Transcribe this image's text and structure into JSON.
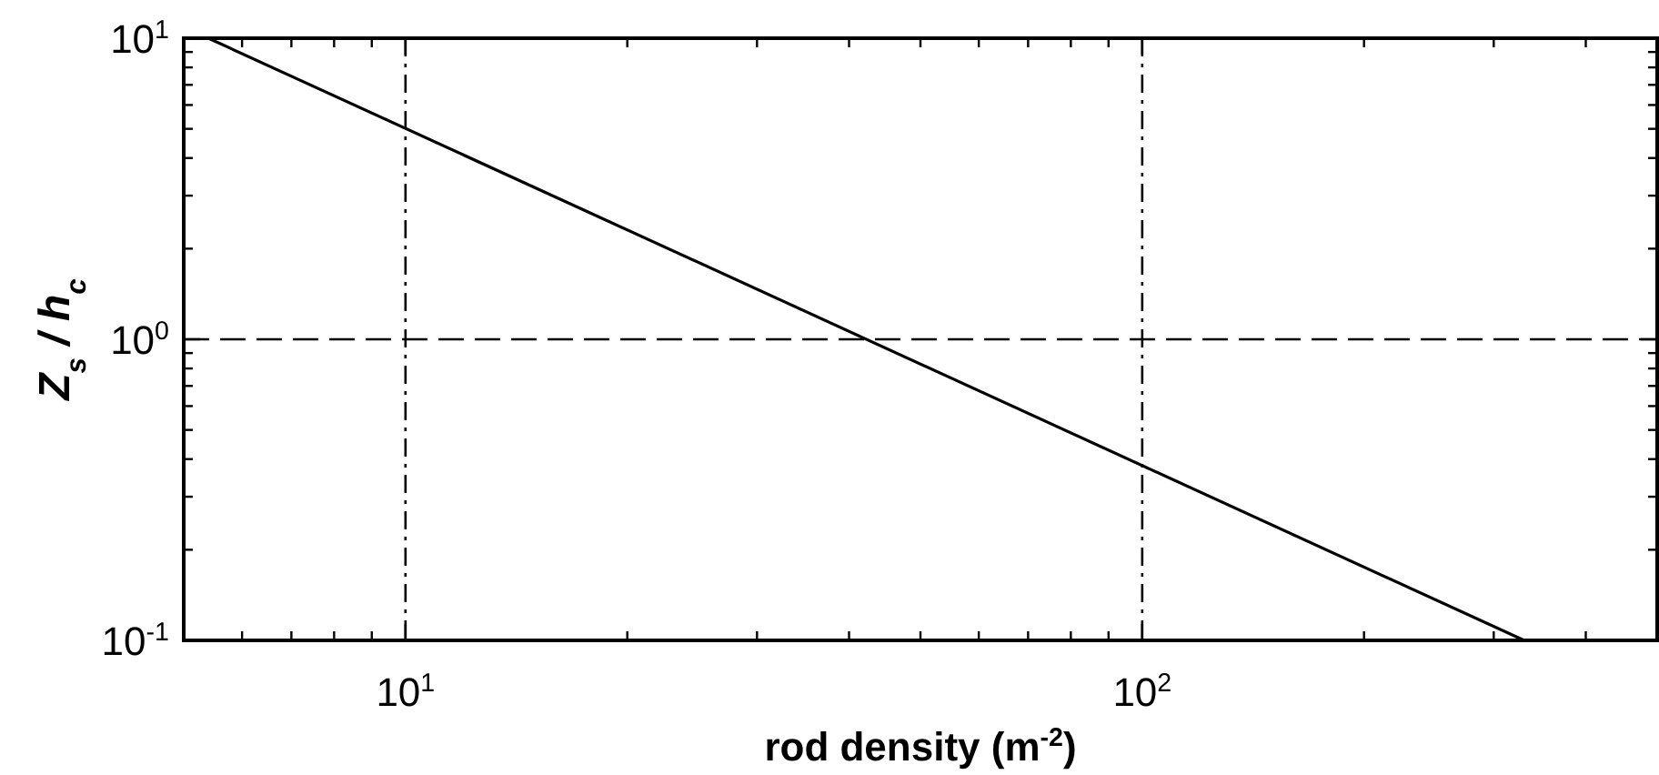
{
  "chart_data": {
    "type": "line",
    "xlabel": "rod density (m$^{-2}$)",
    "ylabel": "Z$_{s}$ / h$_{c}$",
    "log": "xy",
    "xlim": [
      5,
      500
    ],
    "ylim": [
      0.1,
      10
    ],
    "xticks": [
      {
        "value": 5,
        "label": null
      },
      {
        "value": 6,
        "label": null
      },
      {
        "value": 7,
        "label": null
      },
      {
        "value": 8,
        "label": null
      },
      {
        "value": 9,
        "label": null
      },
      {
        "value": 10,
        "label": "10$^{1}$"
      },
      {
        "value": 20,
        "label": null
      },
      {
        "value": 30,
        "label": null
      },
      {
        "value": 40,
        "label": null
      },
      {
        "value": 50,
        "label": null
      },
      {
        "value": 60,
        "label": null
      },
      {
        "value": 70,
        "label": null
      },
      {
        "value": 80,
        "label": null
      },
      {
        "value": 90,
        "label": null
      },
      {
        "value": 100,
        "label": "10$^{2}$"
      },
      {
        "value": 200,
        "label": null
      },
      {
        "value": 300,
        "label": null
      },
      {
        "value": 400,
        "label": null
      },
      {
        "value": 500,
        "label": null
      }
    ],
    "yticks": [
      {
        "value": 0.1,
        "label": "10$^{-1}$"
      },
      {
        "value": 0.2,
        "label": null
      },
      {
        "value": 0.3,
        "label": null
      },
      {
        "value": 0.4,
        "label": null
      },
      {
        "value": 0.5,
        "label": null
      },
      {
        "value": 0.6,
        "label": null
      },
      {
        "value": 0.7,
        "label": null
      },
      {
        "value": 0.8,
        "label": null
      },
      {
        "value": 0.9,
        "label": null
      },
      {
        "value": 1,
        "label": "10$^{0}$"
      },
      {
        "value": 2,
        "label": null
      },
      {
        "value": 3,
        "label": null
      },
      {
        "value": 4,
        "label": null
      },
      {
        "value": 5,
        "label": null
      },
      {
        "value": 6,
        "label": null
      },
      {
        "value": 7,
        "label": null
      },
      {
        "value": 8,
        "label": null
      },
      {
        "value": 9,
        "label": null
      },
      {
        "value": 10,
        "label": "10$^{1}$"
      }
    ],
    "series": [
      {
        "color": "#000000",
        "x": [
          5.4,
          330
        ],
        "values": [
          10,
          0.1
        ]
      }
    ],
    "ref_lines": [
      {
        "axis": "y",
        "value": 1,
        "line_style": "dashed",
        "color": "#000000"
      },
      {
        "axis": "x",
        "value": 10,
        "line_style": "dashdot",
        "color": "#000000"
      },
      {
        "axis": "x",
        "value": 100,
        "line_style": "dashdot",
        "color": "#000000"
      }
    ],
    "marker": "none"
  }
}
